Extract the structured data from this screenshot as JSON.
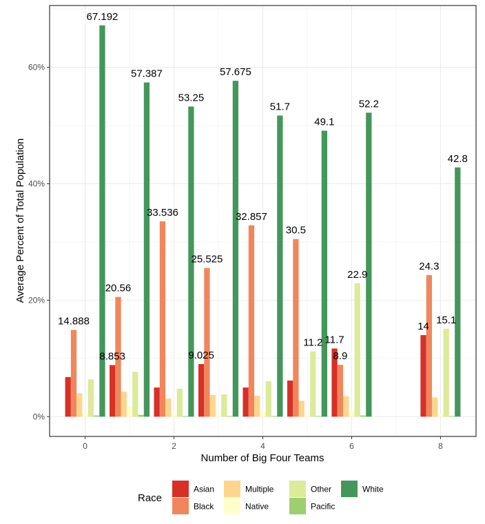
{
  "chart_data": {
    "type": "bar",
    "xlabel": "Number of Big Four Teams",
    "ylabel": "Average Percent of Total Population",
    "x": [
      0,
      1,
      2,
      3,
      4,
      5,
      6,
      8
    ],
    "x_ticks": [
      {
        "value": 0,
        "label": "0"
      },
      {
        "value": 2,
        "label": "2"
      },
      {
        "value": 4,
        "label": "4"
      },
      {
        "value": 6,
        "label": "6"
      },
      {
        "value": 8,
        "label": "8"
      }
    ],
    "xlim": [
      -0.8,
      8.8
    ],
    "y_ticks": [
      {
        "value": 0,
        "label": "0%"
      },
      {
        "value": 20,
        "label": "20%"
      },
      {
        "value": 40,
        "label": "40%"
      },
      {
        "value": 60,
        "label": "60%"
      }
    ],
    "ylim": [
      -3.4,
      70.6
    ],
    "grid": true,
    "legend": {
      "title": "Race",
      "position": "bottom",
      "columns": 4
    },
    "series": [
      {
        "name": "Asian",
        "color": "#d73027",
        "values": [
          6.8,
          8.853,
          5.0,
          9.025,
          5.0,
          6.2,
          11.7,
          14
        ],
        "labels": [
          "",
          "8.853",
          "",
          "9.025",
          "",
          "",
          "11.7",
          "14"
        ]
      },
      {
        "name": "Black",
        "color": "#f1865c",
        "values": [
          14.888,
          20.56,
          33.536,
          25.525,
          32.857,
          30.5,
          8.9,
          24.3
        ],
        "labels": [
          "14.888",
          "20.56",
          "33.536",
          "25.525",
          "32.857",
          "30.5",
          "8.9",
          "24.3"
        ]
      },
      {
        "name": "Multiple",
        "color": "#fcd68c",
        "values": [
          4.0,
          4.3,
          3.1,
          3.7,
          3.6,
          2.7,
          3.5,
          3.3
        ],
        "labels": [
          "",
          "",
          "",
          "",
          "",
          "",
          "",
          ""
        ]
      },
      {
        "name": "Native",
        "color": "#ffffcc",
        "values": [
          0.5,
          1.7,
          0.4,
          0.4,
          0.9,
          0.3,
          0.9,
          0.4
        ],
        "labels": [
          "",
          "",
          "",
          "",
          "",
          "",
          "",
          ""
        ]
      },
      {
        "name": "Other",
        "color": "#dbeb9a",
        "values": [
          6.4,
          7.7,
          4.8,
          3.8,
          6.1,
          11.2,
          22.9,
          15.1
        ],
        "labels": [
          "",
          "",
          "",
          "",
          "",
          "11.2",
          "22.9",
          "15.1"
        ]
      },
      {
        "name": "Pacific",
        "color": "#9ccf6f",
        "values": [
          0.2,
          0.3,
          0.1,
          0.1,
          0.1,
          0.1,
          0.2,
          0.1
        ],
        "labels": [
          "",
          "",
          "",
          "",
          "",
          "",
          "",
          ""
        ]
      },
      {
        "name": "White",
        "color": "#44975a",
        "values": [
          67.192,
          57.387,
          53.25,
          57.675,
          51.7,
          49.1,
          52.2,
          42.8
        ],
        "labels": [
          "67.192",
          "57.387",
          "53.25",
          "57.675",
          "51.7",
          "49.1",
          "52.2",
          "42.8"
        ]
      }
    ]
  }
}
